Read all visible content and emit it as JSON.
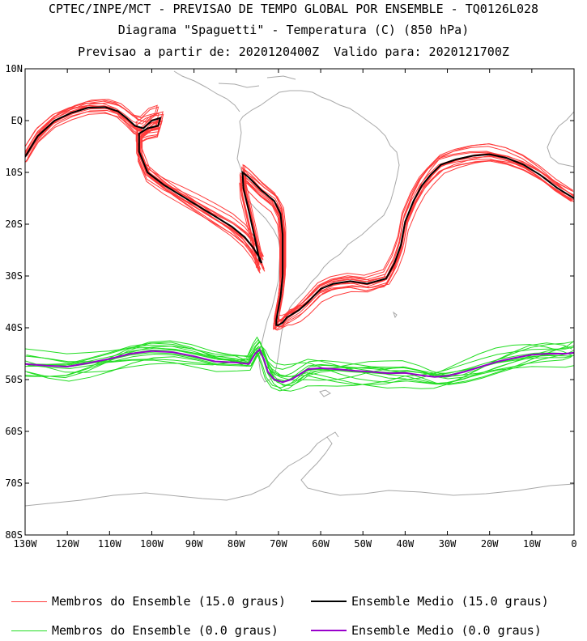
{
  "titles": {
    "line1": "CPTEC/INPE/MCT - PREVISAO DE TEMPO GLOBAL POR ENSEMBLE - TQ0126L028",
    "line2": "Diagrama \"Spaguetti\" - Temperatura (C) (850 hPa)",
    "line3": "Previsao a partir de: 2020120400Z  Valido para: 2020121700Z"
  },
  "colors": {
    "member_15": "#ff3b3b",
    "mean_15": "#000000",
    "member_0": "#22dd22",
    "mean_0": "#9900cc",
    "coast": "#a8a8a8"
  },
  "axes": {
    "lat_ticks": [
      "10N",
      "EQ",
      "10S",
      "20S",
      "30S",
      "40S",
      "50S",
      "60S",
      "70S",
      "80S"
    ],
    "lon_ticks": [
      "130W",
      "120W",
      "110W",
      "100W",
      "90W",
      "80W",
      "70W",
      "60W",
      "50W",
      "40W",
      "30W",
      "20W",
      "10W",
      "0"
    ]
  },
  "legend": {
    "member_15": "Membros do Ensemble (15.0 graus)",
    "mean_15": "Ensemble Medio (15.0 graus)",
    "member_0": "Membros do Ensemble (0.0 graus)",
    "mean_0": "Ensemble Medio (0.0 graus)"
  },
  "chart_data": {
    "type": "line",
    "xlim": [
      -130,
      0
    ],
    "ylim": [
      -80,
      10
    ],
    "series": [
      {
        "name": "Ensemble Medio (15.0 graus)",
        "x": [
          -130,
          -127,
          -123,
          -119,
          -115,
          -111,
          -108,
          -106,
          -104,
          -102,
          -100,
          -98,
          -98.5,
          -101,
          -103,
          -103,
          -101,
          -97,
          -93,
          -89,
          -85,
          -81,
          -78,
          -76,
          -74.5,
          -74,
          -74.5,
          -75.5,
          -77,
          -78.3,
          -78.5,
          -77,
          -74,
          -71,
          -69.5,
          -69,
          -69,
          -69,
          -69.5,
          -70.5,
          -70.5,
          -70,
          -69,
          -68,
          -67,
          -65,
          -63,
          -60,
          -57,
          -53,
          -49,
          -44.5,
          -42.5,
          -41,
          -40,
          -38,
          -36,
          -34,
          -31.5,
          -28,
          -24,
          -20,
          -16,
          -12,
          -8,
          -4,
          0
        ],
        "y": [
          -7,
          -3,
          0,
          1.5,
          2.5,
          2.6,
          1.8,
          0.5,
          -1,
          -1.5,
          0,
          0.5,
          -1,
          -1.5,
          -2.5,
          -6,
          -10,
          -12.5,
          -14.5,
          -16.5,
          -18.5,
          -20.5,
          -22.5,
          -24.5,
          -26.5,
          -27.5,
          -27,
          -23,
          -17.5,
          -13,
          -10,
          -11,
          -13.5,
          -15.5,
          -18,
          -22,
          -26,
          -30,
          -34,
          -38.5,
          -39.5,
          -39.5,
          -39,
          -38,
          -37.5,
          -36.5,
          -35,
          -32.5,
          -31.5,
          -31,
          -31.5,
          -30.5,
          -27.5,
          -24,
          -19.5,
          -15.5,
          -12.5,
          -10.5,
          -8.5,
          -7.5,
          -6.8,
          -6.5,
          -7.2,
          -8.5,
          -10.5,
          -13,
          -15
        ]
      },
      {
        "name": "Ensemble Medio (0.0 graus)",
        "x": [
          -130,
          -125,
          -120,
          -115,
          -110,
          -105,
          -100,
          -95,
          -90,
          -85,
          -80,
          -77,
          -75.5,
          -74.5,
          -73.5,
          -72.5,
          -71,
          -69,
          -67,
          -65,
          -63,
          -60,
          -56,
          -52,
          -48,
          -44,
          -40,
          -36,
          -33,
          -30,
          -26,
          -22,
          -18,
          -14,
          -10,
          -6,
          -2,
          0
        ],
        "y": [
          -47,
          -47.3,
          -47.5,
          -46.8,
          -46,
          -45,
          -44.5,
          -44.7,
          -45.5,
          -46.5,
          -46.7,
          -47,
          -45,
          -44.2,
          -46,
          -48.5,
          -50,
          -50.5,
          -50,
          -49,
          -48,
          -47.8,
          -48,
          -48.3,
          -48.5,
          -48.8,
          -48.7,
          -49.2,
          -49.5,
          -49.3,
          -48.5,
          -47.5,
          -46.5,
          -45.8,
          -45.2,
          -45,
          -45,
          -44.8
        ]
      }
    ],
    "member_groups": [
      {
        "name": "Membros do Ensemble (15.0 graus)",
        "count": 14
      },
      {
        "name": "Membros do Ensemble (0.0 graus)",
        "count": 14
      }
    ]
  }
}
